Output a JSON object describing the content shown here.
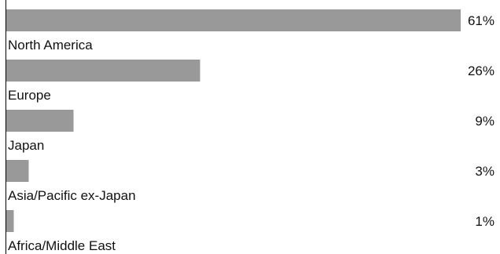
{
  "chart_data": {
    "type": "bar",
    "orientation": "horizontal",
    "categories": [
      "North America",
      "Europe",
      "Japan",
      "Asia/Pacific ex-Japan",
      "Africa/Middle East"
    ],
    "values": [
      61,
      26,
      9,
      3,
      1
    ],
    "value_labels": [
      "61%",
      "26%",
      "9%",
      "3%",
      "1%"
    ],
    "unit": "%",
    "xlim": [
      0,
      61
    ],
    "grid": false,
    "legend": "none",
    "colors": {
      "bar": "#999999",
      "axis": "#000000",
      "text": "#111111"
    }
  }
}
